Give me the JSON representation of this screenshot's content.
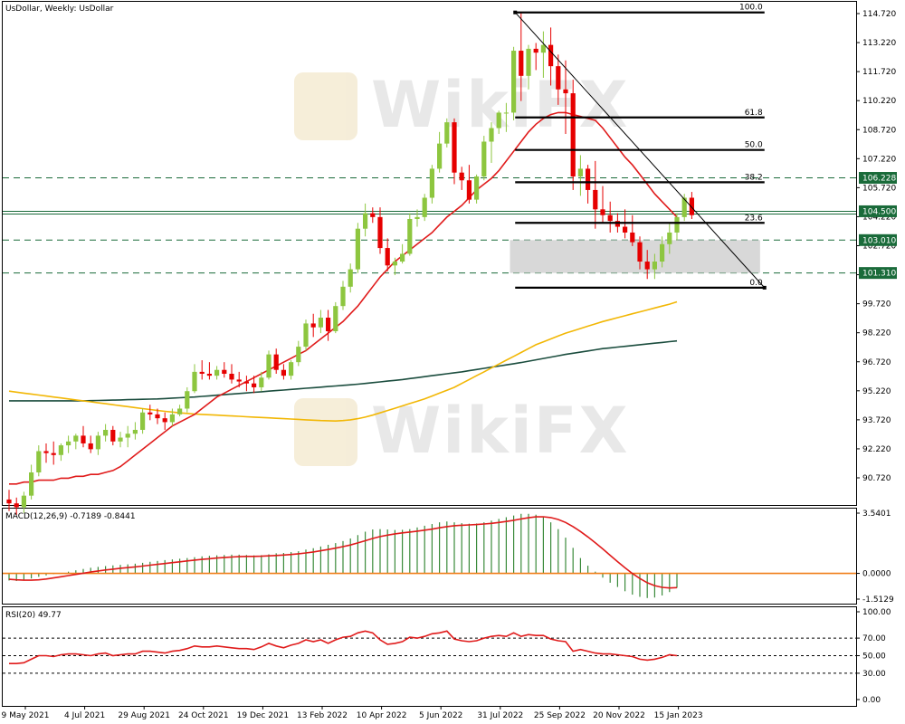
{
  "header": {
    "title": "UsDollar, Weekly:  UsDollar"
  },
  "watermark": "WikiFX",
  "indicators": {
    "macd_label": "MACD(12,26,9) -0.7189 -0.8441",
    "rsi_label": "RSI(20) 49.77"
  },
  "price_axis": {
    "ticks": [
      "114.720",
      "113.220",
      "111.720",
      "110.220",
      "108.720",
      "107.220",
      "105.720",
      "104.220",
      "102.720",
      "101.220",
      "99.720",
      "98.220",
      "96.720",
      "95.220",
      "93.720",
      "92.220",
      "90.720"
    ],
    "ticks_num": [
      114.72,
      113.22,
      111.72,
      110.22,
      108.72,
      107.22,
      105.72,
      104.22,
      102.72,
      101.22,
      99.72,
      98.22,
      96.72,
      95.22,
      93.72,
      92.22,
      90.72
    ]
  },
  "macd_axis": {
    "ticks": [
      "3.5401",
      "0.0000",
      "-1.5129"
    ],
    "ticks_num": [
      3.5401,
      0.0,
      -1.5129
    ]
  },
  "rsi_axis": {
    "ticks": [
      "100.00",
      "70.00",
      "50.00",
      "30.00",
      "0.00"
    ],
    "ticks_num": [
      100,
      70,
      50,
      30,
      0
    ]
  },
  "time_axis": {
    "labels": [
      "9 May 2021",
      "4 Jul 2021",
      "29 Aug 2021",
      "24 Oct 2021",
      "19 Dec 2021",
      "13 Feb 2022",
      "10 Apr 2022",
      "5 Jun 2022",
      "31 Jul 2022",
      "25 Sep 2022",
      "20 Nov 2022",
      "15 Jan 2023"
    ],
    "label_bar_index": [
      0,
      8,
      16,
      24,
      32,
      40,
      48,
      56,
      64,
      72,
      80,
      88
    ]
  },
  "levels": [
    {
      "value": 106.228,
      "label": "106.228",
      "color": "#1a6b3a"
    },
    {
      "value": 104.5,
      "label": "104.500",
      "color": "#1a6b3a"
    },
    {
      "value": 103.01,
      "label": "103.010",
      "color": "#1a6b3a"
    },
    {
      "value": 101.31,
      "label": "101.310",
      "color": "#1a6b3a"
    }
  ],
  "fibonacci": {
    "high": 114.78,
    "low": 100.55,
    "levels": [
      {
        "ratio": "100.0",
        "value": 114.78
      },
      {
        "ratio": "61.8",
        "value": 109.35
      },
      {
        "ratio": "50.0",
        "value": 107.67
      },
      {
        "ratio": "38.2",
        "value": 106.0
      },
      {
        "ratio": "23.6",
        "value": 103.9
      },
      {
        "ratio": "0.0",
        "value": 100.55
      }
    ]
  },
  "colors": {
    "up": "#8dc63f",
    "down": "#e60000",
    "ma_fast": "#e01b1b",
    "ma_mid": "#f2b705",
    "ma_slow": "#1b4d3e",
    "macd_hist": "#3a8a3a",
    "macd_signal": "#e01b1b",
    "zero_line": "#f07f1a",
    "grid_dash": "#1a6b3a",
    "zone": "#d4d4d4"
  },
  "chart_data": {
    "type": "candlestick",
    "title": "UsDollar, Weekly:  UsDollar",
    "ylim": [
      89.8,
      115.4
    ],
    "ohlc": [
      [
        89.6,
        90.1,
        89.0,
        89.4
      ],
      [
        89.4,
        89.7,
        88.8,
        89.2
      ],
      [
        89.2,
        90.0,
        88.9,
        89.8
      ],
      [
        89.8,
        91.4,
        89.6,
        91.0
      ],
      [
        91.0,
        92.4,
        90.8,
        92.1
      ],
      [
        92.1,
        92.5,
        91.5,
        92.0
      ],
      [
        92.0,
        92.6,
        91.4,
        91.9
      ],
      [
        91.9,
        92.5,
        91.6,
        92.4
      ],
      [
        92.4,
        92.9,
        92.0,
        92.6
      ],
      [
        92.6,
        93.0,
        92.2,
        92.9
      ],
      [
        92.9,
        93.4,
        92.3,
        92.5
      ],
      [
        92.5,
        92.9,
        92.0,
        92.2
      ],
      [
        92.2,
        93.1,
        91.9,
        92.9
      ],
      [
        92.9,
        93.5,
        92.6,
        93.2
      ],
      [
        93.2,
        93.4,
        92.4,
        92.6
      ],
      [
        92.6,
        93.1,
        92.3,
        92.8
      ],
      [
        92.8,
        93.4,
        92.3,
        93.0
      ],
      [
        93.0,
        93.6,
        92.7,
        93.2
      ],
      [
        93.2,
        94.3,
        93.0,
        94.1
      ],
      [
        94.1,
        94.5,
        93.7,
        94.0
      ],
      [
        94.0,
        94.3,
        93.5,
        93.8
      ],
      [
        93.8,
        94.1,
        93.2,
        93.6
      ],
      [
        93.6,
        94.3,
        93.4,
        94.0
      ],
      [
        94.0,
        94.5,
        93.9,
        94.3
      ],
      [
        94.3,
        95.4,
        94.1,
        95.2
      ],
      [
        95.2,
        96.6,
        95.1,
        96.2
      ],
      [
        96.2,
        96.8,
        95.8,
        96.1
      ],
      [
        96.1,
        96.7,
        95.8,
        96.0
      ],
      [
        96.0,
        96.5,
        95.8,
        96.3
      ],
      [
        96.3,
        96.7,
        95.9,
        96.1
      ],
      [
        96.1,
        96.6,
        95.6,
        95.8
      ],
      [
        95.8,
        96.2,
        95.4,
        95.7
      ],
      [
        95.7,
        96.0,
        95.2,
        95.6
      ],
      [
        95.6,
        96.0,
        95.1,
        95.4
      ],
      [
        95.4,
        96.2,
        95.2,
        95.9
      ],
      [
        95.9,
        97.3,
        95.8,
        97.1
      ],
      [
        97.1,
        97.4,
        96.1,
        96.3
      ],
      [
        96.3,
        96.6,
        95.8,
        96.0
      ],
      [
        96.0,
        96.8,
        95.8,
        96.7
      ],
      [
        96.7,
        97.8,
        96.5,
        97.5
      ],
      [
        97.5,
        98.9,
        97.3,
        98.7
      ],
      [
        98.7,
        99.2,
        98.0,
        98.5
      ],
      [
        98.5,
        99.4,
        98.2,
        99.0
      ],
      [
        99.0,
        99.4,
        97.8,
        98.3
      ],
      [
        98.3,
        99.8,
        98.2,
        99.6
      ],
      [
        99.6,
        100.9,
        99.4,
        100.6
      ],
      [
        100.6,
        101.8,
        100.3,
        101.5
      ],
      [
        101.5,
        103.9,
        101.3,
        103.6
      ],
      [
        103.6,
        104.9,
        103.2,
        104.4
      ],
      [
        104.4,
        104.7,
        103.9,
        104.2
      ],
      [
        104.2,
        104.7,
        102.3,
        102.6
      ],
      [
        102.6,
        103.1,
        101.4,
        101.7
      ],
      [
        101.7,
        102.1,
        101.2,
        101.9
      ],
      [
        101.9,
        102.8,
        101.8,
        102.3
      ],
      [
        102.3,
        104.4,
        102.2,
        104.1
      ],
      [
        104.1,
        104.6,
        103.7,
        104.2
      ],
      [
        104.2,
        105.4,
        104.0,
        105.2
      ],
      [
        105.2,
        106.9,
        104.9,
        106.7
      ],
      [
        106.7,
        108.6,
        106.5,
        108.0
      ],
      [
        108.0,
        109.3,
        107.8,
        109.1
      ],
      [
        109.1,
        109.3,
        105.9,
        106.5
      ],
      [
        106.5,
        106.8,
        105.6,
        106.1
      ],
      [
        106.1,
        106.9,
        104.9,
        105.1
      ],
      [
        105.1,
        106.4,
        104.9,
        106.3
      ],
      [
        106.3,
        108.4,
        106.1,
        108.1
      ],
      [
        108.1,
        109.1,
        107.0,
        108.8
      ],
      [
        108.8,
        109.7,
        108.5,
        109.6
      ],
      [
        109.6,
        110.1,
        108.6,
        109.6
      ],
      [
        109.6,
        113.0,
        109.2,
        112.8
      ],
      [
        112.8,
        114.8,
        110.2,
        111.5
      ],
      [
        111.5,
        113.1,
        110.8,
        112.9
      ],
      [
        112.9,
        113.2,
        111.8,
        112.7
      ],
      [
        112.7,
        113.8,
        111.4,
        113.1
      ],
      [
        113.1,
        114.0,
        111.0,
        112.0
      ],
      [
        112.0,
        112.6,
        110.0,
        110.8
      ],
      [
        110.8,
        112.3,
        108.5,
        110.6
      ],
      [
        110.6,
        111.3,
        105.6,
        106.3
      ],
      [
        106.3,
        107.4,
        105.3,
        106.7
      ],
      [
        106.7,
        106.9,
        104.9,
        105.6
      ],
      [
        105.6,
        107.1,
        103.6,
        104.6
      ],
      [
        104.6,
        105.8,
        103.9,
        104.3
      ],
      [
        104.3,
        105.0,
        103.4,
        104.0
      ],
      [
        104.0,
        104.4,
        103.4,
        103.7
      ],
      [
        103.7,
        104.6,
        103.1,
        103.4
      ],
      [
        103.4,
        104.3,
        102.7,
        102.9
      ],
      [
        102.9,
        103.2,
        101.5,
        101.9
      ],
      [
        101.9,
        102.5,
        101.0,
        101.5
      ],
      [
        101.5,
        102.3,
        101.0,
        101.9
      ],
      [
        101.9,
        103.2,
        101.6,
        102.8
      ],
      [
        102.8,
        103.9,
        102.3,
        103.4
      ],
      [
        103.4,
        104.4,
        103.0,
        104.2
      ],
      [
        104.2,
        105.4,
        104.0,
        105.2
      ],
      [
        105.2,
        105.5,
        104.1,
        104.3
      ]
    ],
    "ma_fast": [
      90.4,
      90.4,
      90.5,
      90.5,
      90.6,
      90.6,
      90.6,
      90.7,
      90.7,
      90.8,
      90.8,
      90.9,
      90.9,
      91.0,
      91.1,
      91.3,
      91.6,
      91.9,
      92.2,
      92.5,
      92.8,
      93.1,
      93.4,
      93.6,
      93.8,
      94.0,
      94.3,
      94.6,
      94.9,
      95.1,
      95.3,
      95.5,
      95.7,
      95.9,
      96.1,
      96.3,
      96.5,
      96.7,
      96.9,
      97.1,
      97.3,
      97.6,
      97.9,
      98.2,
      98.5,
      98.8,
      99.2,
      99.6,
      100.1,
      100.6,
      101.1,
      101.5,
      101.9,
      102.2,
      102.5,
      102.8,
      103.1,
      103.4,
      103.8,
      104.2,
      104.5,
      104.8,
      105.2,
      105.6,
      105.9,
      106.2,
      106.6,
      107.1,
      107.6,
      108.1,
      108.6,
      109.0,
      109.3,
      109.5,
      109.6,
      109.6,
      109.5,
      109.4,
      109.3,
      109.2,
      108.8,
      108.3,
      107.8,
      107.3,
      106.9,
      106.4,
      105.9,
      105.4,
      105.0,
      104.6,
      104.2
    ],
    "ma_mid": [
      95.2,
      95.15,
      95.1,
      95.05,
      95.0,
      94.95,
      94.9,
      94.85,
      94.8,
      94.75,
      94.7,
      94.65,
      94.6,
      94.55,
      94.5,
      94.45,
      94.4,
      94.35,
      94.3,
      94.25,
      94.2,
      94.16,
      94.12,
      94.08,
      94.05,
      94.02,
      94.0,
      93.98,
      93.96,
      93.94,
      93.92,
      93.9,
      93.88,
      93.86,
      93.84,
      93.82,
      93.8,
      93.78,
      93.76,
      93.74,
      93.72,
      93.7,
      93.68,
      93.67,
      93.66,
      93.68,
      93.72,
      93.78,
      93.86,
      93.96,
      94.08,
      94.2,
      94.32,
      94.44,
      94.56,
      94.68,
      94.8,
      94.95,
      95.1,
      95.25,
      95.4,
      95.6,
      95.8,
      96.0,
      96.2,
      96.4,
      96.6,
      96.8,
      97.0,
      97.2,
      97.4,
      97.6,
      97.75,
      97.9,
      98.05,
      98.2,
      98.32,
      98.44,
      98.56,
      98.68,
      98.8,
      98.9,
      99.0,
      99.1,
      99.2,
      99.3,
      99.4,
      99.5,
      99.6,
      99.7,
      99.82
    ],
    "ma_slow": [
      94.7,
      94.7,
      94.7,
      94.7,
      94.7,
      94.7,
      94.7,
      94.7,
      94.7,
      94.7,
      94.7,
      94.71,
      94.72,
      94.73,
      94.74,
      94.75,
      94.76,
      94.77,
      94.78,
      94.79,
      94.8,
      94.82,
      94.84,
      94.86,
      94.88,
      94.9,
      94.93,
      94.96,
      94.99,
      95.02,
      95.05,
      95.08,
      95.11,
      95.14,
      95.17,
      95.2,
      95.23,
      95.26,
      95.29,
      95.32,
      95.35,
      95.38,
      95.41,
      95.44,
      95.47,
      95.5,
      95.53,
      95.56,
      95.6,
      95.64,
      95.68,
      95.72,
      95.76,
      95.8,
      95.85,
      95.9,
      95.95,
      96.0,
      96.05,
      96.1,
      96.15,
      96.2,
      96.26,
      96.32,
      96.38,
      96.44,
      96.5,
      96.56,
      96.62,
      96.68,
      96.75,
      96.82,
      96.89,
      96.96,
      97.03,
      97.1,
      97.16,
      97.22,
      97.28,
      97.34,
      97.4,
      97.44,
      97.48,
      97.52,
      97.56,
      97.6,
      97.64,
      97.68,
      97.72,
      97.76,
      97.8
    ],
    "macd_hist": [
      -0.42,
      -0.45,
      -0.4,
      -0.3,
      -0.2,
      -0.12,
      -0.05,
      0.02,
      0.1,
      0.18,
      0.26,
      0.33,
      0.38,
      0.43,
      0.47,
      0.5,
      0.53,
      0.57,
      0.62,
      0.68,
      0.73,
      0.78,
      0.82,
      0.86,
      0.9,
      0.95,
      1.0,
      1.03,
      1.06,
      1.08,
      1.1,
      1.1,
      1.08,
      1.06,
      1.07,
      1.12,
      1.18,
      1.2,
      1.25,
      1.3,
      1.4,
      1.48,
      1.58,
      1.68,
      1.78,
      1.9,
      2.05,
      2.25,
      2.45,
      2.58,
      2.6,
      2.58,
      2.55,
      2.56,
      2.6,
      2.7,
      2.8,
      2.9,
      3.0,
      3.05,
      3.0,
      2.95,
      2.92,
      2.93,
      3.0,
      3.1,
      3.2,
      3.3,
      3.4,
      3.5,
      3.5,
      3.45,
      3.3,
      3.0,
      2.6,
      2.1,
      1.5,
      0.9,
      0.45,
      0.1,
      -0.25,
      -0.55,
      -0.8,
      -1.05,
      -1.25,
      -1.38,
      -1.45,
      -1.42,
      -1.3,
      -1.1,
      -0.85
    ],
    "macd_signal": [
      -0.35,
      -0.38,
      -0.4,
      -0.4,
      -0.38,
      -0.33,
      -0.27,
      -0.2,
      -0.13,
      -0.06,
      0.01,
      0.08,
      0.14,
      0.2,
      0.25,
      0.3,
      0.34,
      0.38,
      0.43,
      0.48,
      0.53,
      0.58,
      0.63,
      0.68,
      0.73,
      0.78,
      0.82,
      0.86,
      0.9,
      0.93,
      0.96,
      0.98,
      1.0,
      1.0,
      1.01,
      1.03,
      1.05,
      1.08,
      1.11,
      1.15,
      1.2,
      1.26,
      1.33,
      1.4,
      1.48,
      1.57,
      1.67,
      1.79,
      1.92,
      2.05,
      2.16,
      2.25,
      2.32,
      2.38,
      2.43,
      2.48,
      2.54,
      2.6,
      2.68,
      2.75,
      2.8,
      2.83,
      2.85,
      2.87,
      2.9,
      2.94,
      2.99,
      3.05,
      3.12,
      3.2,
      3.27,
      3.32,
      3.33,
      3.28,
      3.17,
      2.99,
      2.75,
      2.46,
      2.14,
      1.8,
      1.44,
      1.06,
      0.69,
      0.33,
      -0.01,
      -0.3,
      -0.55,
      -0.72,
      -0.82,
      -0.86,
      -0.84
    ],
    "rsi": [
      41,
      41,
      42,
      46,
      50,
      50,
      49,
      51,
      52,
      52,
      51,
      50,
      52,
      53,
      50,
      51,
      52,
      52,
      55,
      55,
      54,
      53,
      55,
      56,
      58,
      61,
      60,
      60,
      61,
      60,
      59,
      58,
      58,
      57,
      60,
      64,
      61,
      59,
      62,
      64,
      68,
      66,
      68,
      64,
      68,
      71,
      72,
      76,
      78,
      76,
      68,
      63,
      64,
      66,
      71,
      70,
      72,
      75,
      76,
      78,
      69,
      67,
      66,
      67,
      70,
      72,
      73,
      72,
      76,
      72,
      74,
      73,
      73,
      69,
      67,
      66,
      55,
      57,
      55,
      53,
      52,
      52,
      51,
      50,
      49,
      46,
      45,
      46,
      48,
      51,
      50
    ]
  }
}
